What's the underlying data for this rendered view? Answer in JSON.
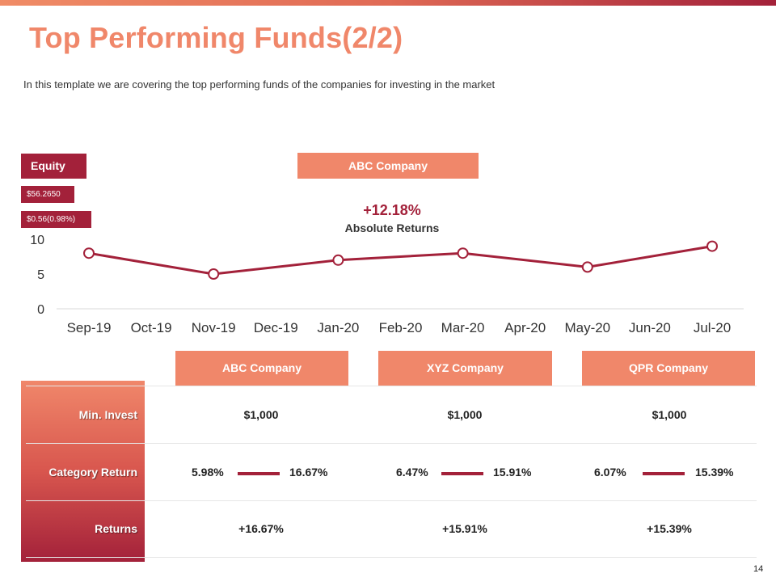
{
  "title": "Top Performing Funds(2/2)",
  "subtitle": "In this template we are covering the top performing funds of the companies for investing in the market",
  "equity_label": "Equity",
  "price_tag": "$56.2650",
  "change_tag": "$0.56(0.98%)",
  "featured_company": "ABC Company",
  "absolute_return": {
    "value": "+12.18%",
    "label": "Absolute Returns"
  },
  "colors": {
    "accent_light": "#f0876a",
    "accent_dark": "#a3213a"
  },
  "chart_data": {
    "type": "line",
    "categories": [
      "Sep-19",
      "Oct-19",
      "Nov-19",
      "Dec-19",
      "Jan-20",
      "Feb-20",
      "Mar-20",
      "Apr-20",
      "May-20",
      "Jun-20",
      "Jul-20"
    ],
    "points": [
      {
        "x": "Sep-19",
        "y": 8
      },
      {
        "x": "Nov-19",
        "y": 5
      },
      {
        "x": "Jan-20",
        "y": 7
      },
      {
        "x": "Mar-20",
        "y": 8
      },
      {
        "x": "May-20",
        "y": 6
      },
      {
        "x": "Jul-20",
        "y": 9
      }
    ],
    "yticks": [
      0,
      5,
      10
    ],
    "ylim": [
      0,
      10
    ],
    "color": "#a3213a"
  },
  "table": {
    "companies": [
      "ABC Company",
      "XYZ Company",
      "QPR Company"
    ],
    "rows": {
      "min_invest": {
        "label": "Min. Invest",
        "values": [
          "$1,000",
          "$1,000",
          "$1,000"
        ]
      },
      "category_return": {
        "label": "Category Return",
        "ranges": [
          {
            "low": "5.98%",
            "high": "16.67%"
          },
          {
            "low": "6.47%",
            "high": "15.91%"
          },
          {
            "low": "6.07%",
            "high": "15.39%"
          }
        ]
      },
      "returns": {
        "label": "Returns",
        "values": [
          "+16.67%",
          "+15.91%",
          "+15.39%"
        ]
      }
    }
  },
  "page_number": "14"
}
